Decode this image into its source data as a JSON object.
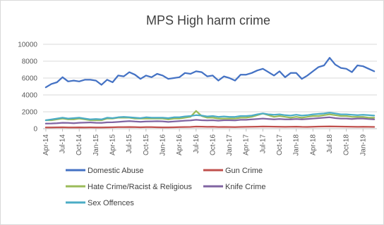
{
  "chart_data": {
    "type": "line",
    "title": "MPS High harm crime",
    "xlabel": "",
    "ylabel": "",
    "ylim": [
      0,
      10000
    ],
    "yticks": [
      0,
      2000,
      4000,
      6000,
      8000,
      10000
    ],
    "grid": true,
    "legend_position": "bottom",
    "x": [
      "Apr-14",
      "May-14",
      "Jun-14",
      "Jul-14",
      "Aug-14",
      "Sep-14",
      "Oct-14",
      "Nov-14",
      "Dec-14",
      "Jan-15",
      "Feb-15",
      "Mar-15",
      "Apr-15",
      "May-15",
      "Jun-15",
      "Jul-15",
      "Aug-15",
      "Sep-15",
      "Oct-15",
      "Nov-15",
      "Dec-15",
      "Jan-16",
      "Feb-16",
      "Mar-16",
      "Apr-16",
      "May-16",
      "Jun-16",
      "Jul-16",
      "Aug-16",
      "Sep-16",
      "Oct-16",
      "Nov-16",
      "Dec-16",
      "Jan-17",
      "Feb-17",
      "Mar-17",
      "Apr-17",
      "May-17",
      "Jun-17",
      "Jul-17",
      "Aug-17",
      "Sep-17",
      "Oct-17",
      "Nov-17",
      "Dec-17",
      "Jan-18",
      "Feb-18",
      "Mar-18",
      "Apr-18",
      "May-18",
      "Jun-18",
      "Jul-18",
      "Aug-18",
      "Sep-18",
      "Oct-18",
      "Nov-18",
      "Dec-18",
      "Jan-19",
      "Feb-19",
      "Mar-19"
    ],
    "xtick_labels": [
      "Apr-14",
      "Jul-14",
      "Oct-14",
      "Jan-15",
      "Apr-15",
      "Jul-15",
      "Oct-15",
      "Jan-16",
      "Apr-16",
      "Jul-16",
      "Oct-16",
      "Jan-17",
      "Apr-17",
      "Jul-17",
      "Oct-17",
      "Jan-18",
      "Apr-18",
      "Jul-18",
      "Oct-18",
      "Jan-19"
    ],
    "series": [
      {
        "name": "Domestic Abuse",
        "color": "#4472c4",
        "values": [
          4900,
          5300,
          5500,
          6100,
          5600,
          5700,
          5600,
          5800,
          5800,
          5700,
          5200,
          5800,
          5500,
          6300,
          6200,
          6700,
          6400,
          5900,
          6300,
          6100,
          6500,
          6300,
          5900,
          6000,
          6100,
          6600,
          6500,
          6800,
          6700,
          6200,
          6300,
          5700,
          6200,
          6000,
          5700,
          6400,
          6400,
          6600,
          6900,
          7100,
          6700,
          6300,
          6800,
          6100,
          6600,
          6600,
          5900,
          6300,
          6800,
          7300,
          7500,
          8400,
          7600,
          7200,
          7100,
          6700,
          7500,
          7400,
          7100,
          6800
        ]
      },
      {
        "name": "Gun Crime",
        "color": "#c0504d",
        "values": [
          150,
          140,
          160,
          170,
          150,
          140,
          160,
          150,
          160,
          150,
          140,
          160,
          170,
          180,
          190,
          200,
          180,
          170,
          190,
          180,
          170,
          160,
          160,
          170,
          180,
          200,
          210,
          250,
          240,
          220,
          230,
          200,
          210,
          200,
          190,
          210,
          220,
          230,
          240,
          260,
          250,
          240,
          230,
          220,
          230,
          240,
          220,
          210,
          230,
          250,
          260,
          270,
          260,
          250,
          240,
          230,
          220,
          230,
          220,
          210
        ]
      },
      {
        "name": "Hate Crime/Racist & Religious",
        "color": "#9bbb59",
        "values": [
          1000,
          1000,
          1100,
          1200,
          1100,
          1100,
          1200,
          1100,
          1000,
          1000,
          1000,
          1200,
          1200,
          1300,
          1300,
          1300,
          1200,
          1200,
          1200,
          1200,
          1200,
          1200,
          1100,
          1200,
          1200,
          1300,
          1400,
          2100,
          1500,
          1300,
          1300,
          1200,
          1200,
          1200,
          1200,
          1300,
          1300,
          1400,
          1600,
          1800,
          1600,
          1400,
          1500,
          1400,
          1300,
          1400,
          1300,
          1400,
          1500,
          1500,
          1600,
          1700,
          1600,
          1500,
          1500,
          1400,
          1400,
          1400,
          1300,
          1300
        ]
      },
      {
        "name": "Knife Crime",
        "color": "#8064a2",
        "values": [
          600,
          620,
          650,
          700,
          680,
          650,
          700,
          720,
          740,
          700,
          680,
          750,
          760,
          800,
          850,
          900,
          850,
          820,
          850,
          870,
          880,
          870,
          800,
          850,
          900,
          950,
          980,
          1050,
          1000,
          980,
          1000,
          950,
          1000,
          1000,
          980,
          1050,
          1050,
          1100,
          1150,
          1200,
          1150,
          1100,
          1150,
          1100,
          1100,
          1150,
          1100,
          1150,
          1200,
          1250,
          1300,
          1350,
          1250,
          1200,
          1200,
          1150,
          1200,
          1200,
          1150,
          1100
        ]
      },
      {
        "name": "Sex Offences",
        "color": "#4bacc6",
        "values": [
          1000,
          1100,
          1200,
          1300,
          1200,
          1250,
          1300,
          1200,
          1100,
          1150,
          1100,
          1300,
          1250,
          1350,
          1400,
          1350,
          1300,
          1250,
          1350,
          1300,
          1300,
          1300,
          1250,
          1350,
          1350,
          1450,
          1500,
          1600,
          1550,
          1450,
          1500,
          1400,
          1450,
          1400,
          1400,
          1500,
          1500,
          1550,
          1700,
          1800,
          1700,
          1650,
          1700,
          1600,
          1550,
          1650,
          1550,
          1600,
          1700,
          1750,
          1800,
          1900,
          1800,
          1700,
          1700,
          1650,
          1600,
          1650,
          1600,
          1550
        ]
      }
    ]
  }
}
